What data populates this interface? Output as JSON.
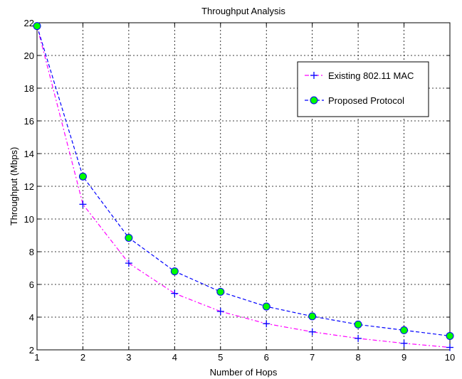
{
  "chart_data": {
    "type": "line",
    "title": "Throughput Analysis",
    "xlabel": "Number of Hops",
    "ylabel": "Throughput (Mbps)",
    "xlim": [
      1,
      10
    ],
    "ylim": [
      2,
      22
    ],
    "x_ticks": [
      1,
      2,
      3,
      4,
      5,
      6,
      7,
      8,
      9,
      10
    ],
    "y_ticks": [
      2,
      4,
      6,
      8,
      10,
      12,
      14,
      16,
      18,
      20,
      22
    ],
    "grid": true,
    "legend_position": "upper-right",
    "x": [
      1,
      2,
      3,
      4,
      5,
      6,
      7,
      8,
      9,
      10
    ],
    "series": [
      {
        "name": "Existing 802.11 MAC",
        "values": [
          21.8,
          10.9,
          7.3,
          5.45,
          4.35,
          3.6,
          3.1,
          2.7,
          2.4,
          2.15
        ],
        "color": "#ff00ff",
        "marker": "plus",
        "marker_color": "#0000ff",
        "line_style": "dashdot"
      },
      {
        "name": "Proposed Protocol",
        "values": [
          21.8,
          12.6,
          8.85,
          6.8,
          5.55,
          4.65,
          4.05,
          3.55,
          3.2,
          2.85
        ],
        "color": "#0000ff",
        "marker": "circle",
        "marker_color": "#00ff00",
        "line_style": "dashed"
      }
    ]
  }
}
